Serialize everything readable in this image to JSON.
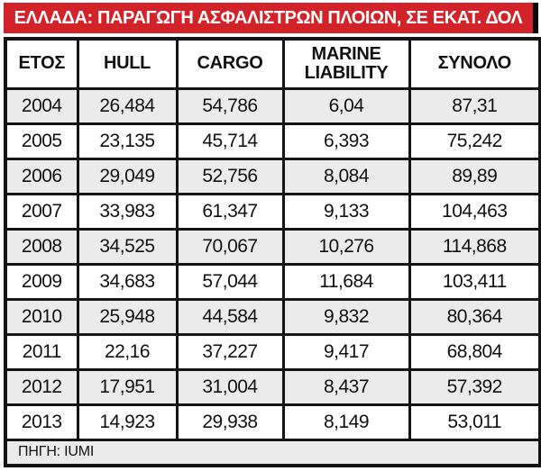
{
  "title": "ΕΛΛΑΔΑ: ΠΑΡΑΓΩΓΗ ΑΣΦΑΛΙΣΤΡΩΝ ΠΛΟΙΩΝ, ΣΕ ΕΚΑΤ. ΔΟΛ",
  "source_note": "ΠΗΓΗ: IUMI",
  "colors": {
    "accent_red": "#d2232a",
    "row_alt": "#ebebeb",
    "border": "#141414",
    "title_text": "#ffffff",
    "body_text": "#111111"
  },
  "chart_data": {
    "type": "table",
    "title": "ΕΛΛΑΔΑ: ΠΑΡΑΓΩΓΗ ΑΣΦΑΛΙΣΤΡΩΝ ΠΛΟΙΩΝ, ΣΕ ΕΚΑΤ. ΔΟΛ",
    "columns": [
      "ΕΤΟΣ",
      "HULL",
      "CARGO",
      "MARINE LIABILITY",
      "ΣΥΝΟΛΟ"
    ],
    "rows": [
      [
        "2004",
        "26,484",
        "54,786",
        "6,04",
        "87,31"
      ],
      [
        "2005",
        "23,135",
        "45,714",
        "6,393",
        "75,242"
      ],
      [
        "2006",
        "29,049",
        "52,756",
        "8,084",
        "89,89"
      ],
      [
        "2007",
        "33,983",
        "61,347",
        "9,133",
        "104,463"
      ],
      [
        "2008",
        "34,525",
        "70,067",
        "10,276",
        "114,868"
      ],
      [
        "2009",
        "34,683",
        "57,044",
        "11,684",
        "103,411"
      ],
      [
        "2010",
        "25,948",
        "44,584",
        "9,832",
        "80,364"
      ],
      [
        "2011",
        "22,16",
        "37,227",
        "9,417",
        "68,804"
      ],
      [
        "2012",
        "17,951",
        "31,004",
        "8,437",
        "57,392"
      ],
      [
        "2013",
        "14,923",
        "29,938",
        "8,149",
        "53,011"
      ]
    ],
    "source": "ΠΗΓΗ: IUMI",
    "decimal_separator": ",",
    "units": "εκατ. δολ. (million USD)"
  }
}
